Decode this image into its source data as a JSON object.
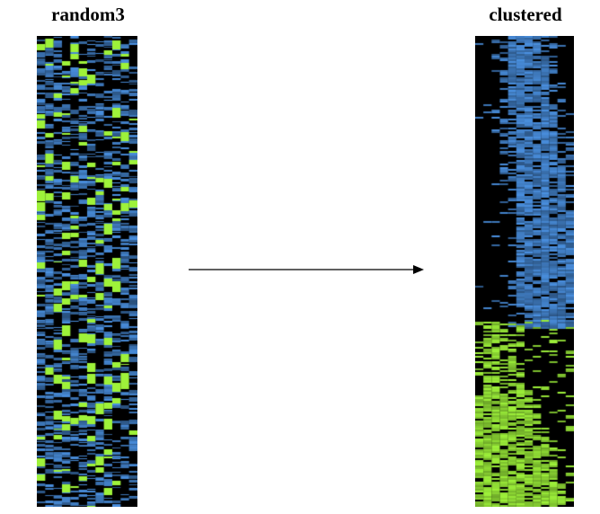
{
  "panels": {
    "left": {
      "title": "random3"
    },
    "right": {
      "title": "clustered"
    }
  },
  "colors": {
    "background": "#000000",
    "blue": "#4a90e0",
    "green": "#9ef23a",
    "arrow": "#000000"
  }
}
